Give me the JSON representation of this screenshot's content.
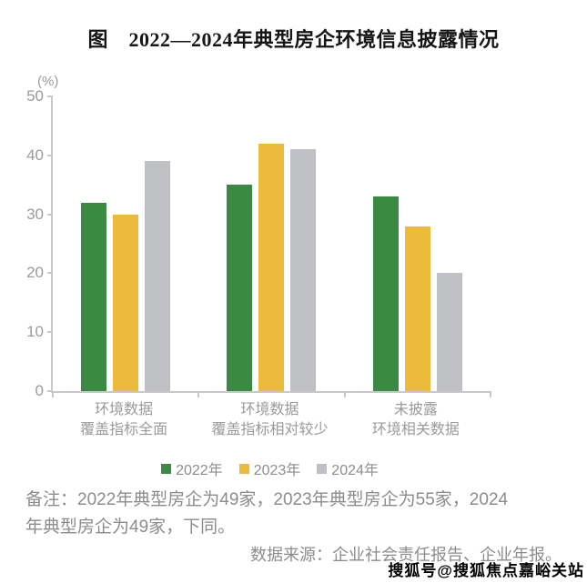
{
  "title": "图　2022—2024年典型房企环境信息披露情况",
  "chart_data": {
    "type": "bar",
    "title": "图　2022—2024年典型房企环境信息披露情况",
    "unit_label": "(%)",
    "xlabel": "",
    "ylabel": "(%)",
    "ylim": [
      0,
      50
    ],
    "yticks": [
      0,
      10,
      20,
      30,
      40,
      50
    ],
    "grid": false,
    "legend_position": "bottom",
    "categories": [
      [
        "环境数据",
        "覆盖指标全面"
      ],
      [
        "环境数据",
        "覆盖指标相对较少"
      ],
      [
        "未披露",
        "环境相关数据"
      ]
    ],
    "series": [
      {
        "name": "2022年",
        "color": "#3a8a43",
        "values": [
          32,
          35,
          33
        ]
      },
      {
        "name": "2023年",
        "color": "#edbb3c",
        "values": [
          30,
          42,
          28
        ]
      },
      {
        "name": "2024年",
        "color": "#bec0c3",
        "values": [
          39,
          41,
          20
        ]
      }
    ]
  },
  "colors": {
    "axis": "#c8c8c8",
    "tick_text": "#9b9b9b",
    "note_text": "#8c8c8c"
  },
  "notes": {
    "line1": "备注：2022年典型房企为49家，2023年典型房企为55家，2024",
    "line2": "年典型房企为49家，下同。"
  },
  "source": "数据来源：企业社会责任报告、企业年报。",
  "watermark": "搜狐号@搜狐焦点嘉峪关站"
}
